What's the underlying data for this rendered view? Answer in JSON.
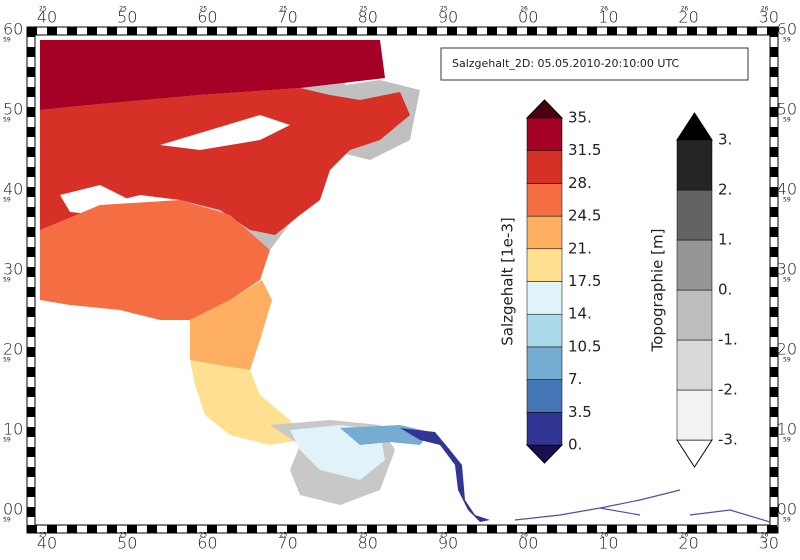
{
  "title": "Salzgehalt_2D: 05.05.2010-20:10:00 UTC",
  "salinity_legend": {
    "label": "Salzgehalt [1e-3]",
    "ticks": [
      "0.",
      "3.5",
      "7.",
      "10.5",
      "14.",
      "17.5",
      "21.",
      "24.5",
      "28.",
      "31.5",
      "35."
    ],
    "colors": [
      "#313695",
      "#4575b4",
      "#74add1",
      "#abd9e9",
      "#e0f3f8",
      "#fee090",
      "#fdae61",
      "#f46d43",
      "#d73027",
      "#a50026"
    ],
    "under_color": "#1a1050",
    "over_color": "#4a0010"
  },
  "topo_legend": {
    "label": "Topographie [m]",
    "ticks": [
      "-3.",
      "-2.",
      "-1.",
      "0.",
      "1.",
      "2.",
      "3."
    ],
    "colors": [
      "#f2f2f2",
      "#d9d9d9",
      "#bdbdbd",
      "#969696",
      "#636363",
      "#252525"
    ],
    "under_color": "#ffffff",
    "over_color": "#000000"
  },
  "x_ticks": [
    {
      "prefix": "25",
      "label": "40"
    },
    {
      "prefix": "25",
      "label": "50"
    },
    {
      "prefix": "25",
      "label": "60"
    },
    {
      "prefix": "25",
      "label": "70"
    },
    {
      "prefix": "25",
      "label": "80"
    },
    {
      "prefix": "25",
      "label": "90"
    },
    {
      "prefix": "26",
      "label": "00"
    },
    {
      "prefix": "26",
      "label": "10"
    },
    {
      "prefix": "26",
      "label": "20"
    },
    {
      "prefix": "26",
      "label": "30"
    }
  ],
  "y_ticks": [
    {
      "prefix": "59",
      "label": "60"
    },
    {
      "prefix": "59",
      "label": "50"
    },
    {
      "prefix": "59",
      "label": "40"
    },
    {
      "prefix": "59",
      "label": "30"
    },
    {
      "prefix": "59",
      "label": "20"
    },
    {
      "prefix": "59",
      "label": "10"
    },
    {
      "prefix": "59",
      "label": "00"
    }
  ]
}
